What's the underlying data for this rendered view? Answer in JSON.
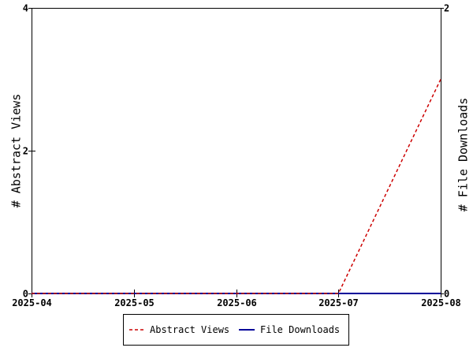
{
  "chart_data": {
    "type": "line",
    "x": [
      "2025-04",
      "2025-05",
      "2025-06",
      "2025-07",
      "2025-08"
    ],
    "x_ticks": [
      "2025-04",
      "2025-05",
      "2025-06",
      "2025-07",
      "2025-08"
    ],
    "xlim": [
      "2025-04",
      "2025-08"
    ],
    "ylabel_left": "# Abstract Views",
    "ylabel_right": "# File Downloads",
    "ylim_left": [
      0,
      4
    ],
    "ylim_right": [
      0,
      2
    ],
    "yticks_left": [
      "0",
      "2",
      "4"
    ],
    "yticks_right": [
      "0",
      "2"
    ],
    "grid": false,
    "legend_position": "bottom",
    "series": [
      {
        "name": "Abstract Views",
        "axis": "left",
        "color": "#cc0000",
        "style": "dashed",
        "values": [
          0,
          0,
          0,
          0,
          3
        ]
      },
      {
        "name": "File Downloads",
        "axis": "right",
        "color": "#000099",
        "style": "solid",
        "values": [
          0,
          0,
          0,
          0,
          0
        ]
      }
    ]
  }
}
